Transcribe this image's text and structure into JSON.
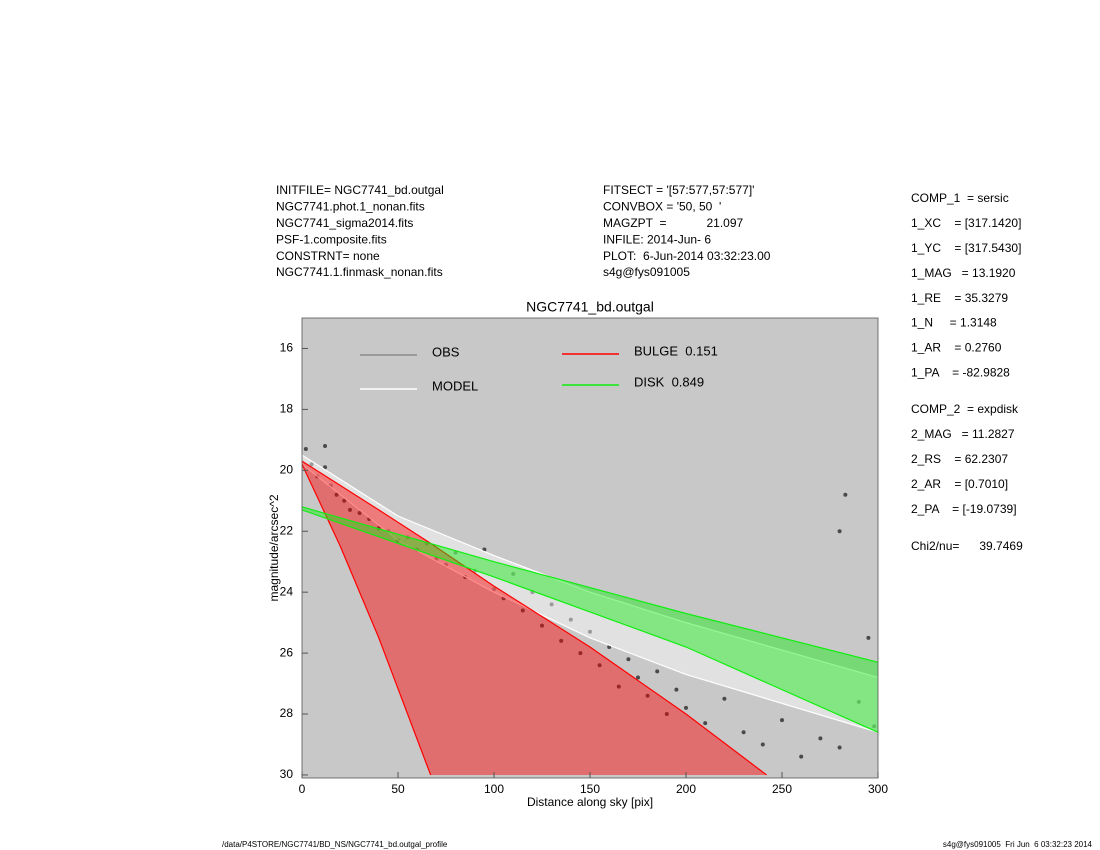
{
  "header_left": [
    "INITFILE= NGC7741_bd.outgal",
    "NGC7741.phot.1_nonan.fits",
    "NGC7741_sigma2014.fits",
    "PSF-1.composite.fits",
    "CONSTRNT= none",
    "NGC7741.1.finmask_nonan.fits"
  ],
  "header_middle": [
    "FITSECT = '[57:577,57:577]'",
    "CONVBOX = '50, 50  '",
    "MAGZPT  =            21.097",
    "INFILE: 2014-Jun- 6",
    "PLOT:  6-Jun-2014 03:32:23.00",
    "s4g@fys091005"
  ],
  "params_comp1": [
    "COMP_1  = sersic",
    "1_XC    = [317.1420]",
    "1_YC    = [317.5430]",
    "1_MAG   = 13.1920",
    "1_RE    = 35.3279",
    "1_N     = 1.3148",
    "1_AR    = 0.2760",
    "1_PA    = -82.9828"
  ],
  "params_comp2": [
    "COMP_2  = expdisk",
    "2_MAG   = 11.2827",
    "2_RS    = 62.2307",
    "2_AR    = [0.7010]",
    "2_PA    = [-19.0739]"
  ],
  "chi2": "Chi2/nu=      39.7469",
  "footer_left": "/data/P4STORE/NGC7741/BD_NS/NGC7741_bd.outgal_profile",
  "footer_right": "s4g@fys091005  Fri Jun  6 03:32:23 2014",
  "chart_data": {
    "type": "scatter",
    "title": "NGC7741_bd.outgal",
    "x_label": "Distance along sky [pix]",
    "y_label": "magnitude/arcsec^2",
    "xlim": [
      0,
      300
    ],
    "ylim": [
      15,
      30.1
    ],
    "y_inverted": true,
    "xticks": [
      0,
      50,
      100,
      150,
      200,
      250,
      300
    ],
    "yticks": [
      16,
      18,
      20,
      22,
      24,
      26,
      28,
      30
    ],
    "background": "#c8c8c8",
    "series": [
      {
        "name": "OBS",
        "type": "scatter",
        "color": "#8a8a8a",
        "point_color": "#4a4a4a",
        "x": [
          2,
          5,
          8,
          12,
          15,
          18,
          22,
          25,
          30,
          35,
          40,
          45,
          50,
          55,
          60,
          65,
          70,
          75,
          80,
          85,
          90,
          95,
          100,
          105,
          110,
          115,
          120,
          125,
          130,
          135,
          140,
          145,
          150,
          155,
          160,
          165,
          170,
          175,
          180,
          185,
          190,
          195,
          200,
          210,
          220,
          230,
          240,
          250,
          260,
          270,
          280,
          290,
          298,
          12,
          283,
          280,
          295
        ],
        "values": [
          19.3,
          19.8,
          20.2,
          19.9,
          20.5,
          20.8,
          21.0,
          21.3,
          21.4,
          21.6,
          21.9,
          22.0,
          22.3,
          22.2,
          22.6,
          22.4,
          22.9,
          23.1,
          22.7,
          23.5,
          23.3,
          22.6,
          23.9,
          24.2,
          23.4,
          24.6,
          24.0,
          25.1,
          24.4,
          25.6,
          24.9,
          26.0,
          25.3,
          26.4,
          25.8,
          27.1,
          26.2,
          26.8,
          27.4,
          26.6,
          28.0,
          27.2,
          27.8,
          28.3,
          27.5,
          28.6,
          29.0,
          28.2,
          29.4,
          28.8,
          29.1,
          27.6,
          28.4,
          19.2,
          20.8,
          22.0,
          25.5
        ]
      },
      {
        "name": "MODEL",
        "type": "band",
        "color": "#ffffff",
        "x": [
          0,
          50,
          100,
          150,
          200,
          300
        ],
        "values": [
          19.5,
          21.5,
          22.8,
          24.0,
          25.0,
          26.8
        ],
        "values_lower": [
          19.8,
          22.3,
          24.0,
          25.5,
          26.7,
          28.6
        ]
      },
      {
        "name": "BULGE  0.151",
        "type": "band",
        "color": "#ff0000",
        "x": [
          0,
          20,
          40,
          67,
          100,
          150,
          200,
          242
        ],
        "values": [
          19.7,
          20.5,
          21.3,
          22.4,
          23.8,
          25.8,
          28.0,
          30.0
        ],
        "values_lower": [
          19.8,
          22.5,
          25.5,
          30.0,
          null,
          null,
          null,
          null
        ]
      },
      {
        "name": "DISK  0.849",
        "type": "band",
        "color": "#11ee11",
        "x": [
          0,
          100,
          200,
          300
        ],
        "values": [
          21.2,
          23.0,
          24.7,
          26.3
        ],
        "values_lower": [
          21.3,
          23.5,
          25.8,
          28.6
        ]
      }
    ]
  }
}
